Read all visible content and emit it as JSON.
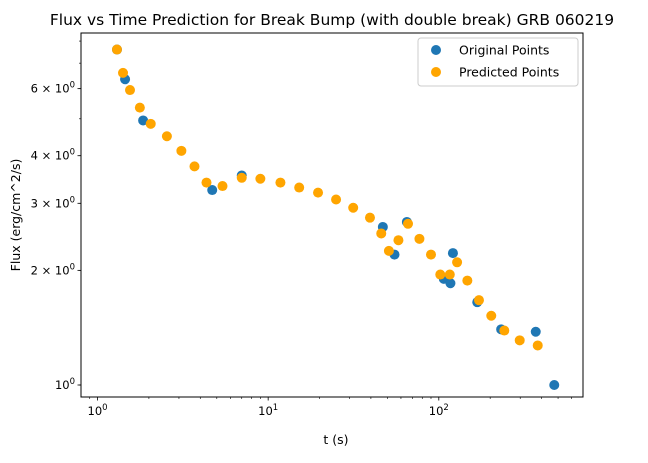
{
  "chart_data": {
    "type": "scatter",
    "title": "Flux vs Time Prediction for Break Bump (with double break) GRB 060219",
    "xlabel": "t (s)",
    "ylabel": "Flux (erg/cm^2/s)",
    "x_scale": "log",
    "y_scale": "log",
    "xlim": [
      0.8,
      700
    ],
    "ylim": [
      0.93,
      8.4
    ],
    "x_ticks": [
      {
        "value": 1,
        "base": "10",
        "exp": "0"
      },
      {
        "value": 10,
        "base": "10",
        "exp": "1"
      },
      {
        "value": 100,
        "base": "10",
        "exp": "2"
      }
    ],
    "y_ticks": [
      {
        "value": 1,
        "mant": "",
        "base": "10",
        "exp": "0"
      },
      {
        "value": 2,
        "mant": "2 × ",
        "base": "10",
        "exp": "0"
      },
      {
        "value": 3,
        "mant": "3 × ",
        "base": "10",
        "exp": "0"
      },
      {
        "value": 4,
        "mant": "4 × ",
        "base": "10",
        "exp": "0"
      },
      {
        "value": 6,
        "mant": "6 × ",
        "base": "10",
        "exp": "0"
      }
    ],
    "grid": false,
    "legend_position": "top-right",
    "series": [
      {
        "name": "Original Points",
        "color": "#1f77b4",
        "points": [
          [
            1.3,
            7.6
          ],
          [
            1.45,
            6.35
          ],
          [
            1.85,
            4.95
          ],
          [
            4.7,
            3.25
          ],
          [
            7.0,
            3.55
          ],
          [
            47,
            2.6
          ],
          [
            55,
            2.2
          ],
          [
            65,
            2.68
          ],
          [
            107,
            1.9
          ],
          [
            117,
            1.85
          ],
          [
            121,
            2.22
          ],
          [
            168,
            1.65
          ],
          [
            232,
            1.4
          ],
          [
            370,
            1.38
          ],
          [
            475,
            1.0
          ]
        ]
      },
      {
        "name": "Predicted Points",
        "color": "#ffa500",
        "points": [
          [
            1.3,
            7.6
          ],
          [
            1.41,
            6.6
          ],
          [
            1.55,
            5.95
          ],
          [
            1.77,
            5.35
          ],
          [
            2.05,
            4.85
          ],
          [
            2.55,
            4.5
          ],
          [
            3.1,
            4.12
          ],
          [
            3.7,
            3.75
          ],
          [
            4.35,
            3.4
          ],
          [
            5.4,
            3.33
          ],
          [
            7.0,
            3.5
          ],
          [
            9.0,
            3.48
          ],
          [
            11.8,
            3.4
          ],
          [
            15.2,
            3.3
          ],
          [
            19.6,
            3.2
          ],
          [
            25,
            3.07
          ],
          [
            31.5,
            2.92
          ],
          [
            39.5,
            2.75
          ],
          [
            46,
            2.5
          ],
          [
            51,
            2.25
          ],
          [
            58,
            2.4
          ],
          [
            66,
            2.65
          ],
          [
            77,
            2.42
          ],
          [
            90,
            2.2
          ],
          [
            102,
            1.95
          ],
          [
            116,
            1.95
          ],
          [
            128,
            2.1
          ],
          [
            147,
            1.88
          ],
          [
            172,
            1.67
          ],
          [
            203,
            1.52
          ],
          [
            242,
            1.39
          ],
          [
            298,
            1.31
          ],
          [
            380,
            1.27
          ]
        ]
      }
    ]
  }
}
